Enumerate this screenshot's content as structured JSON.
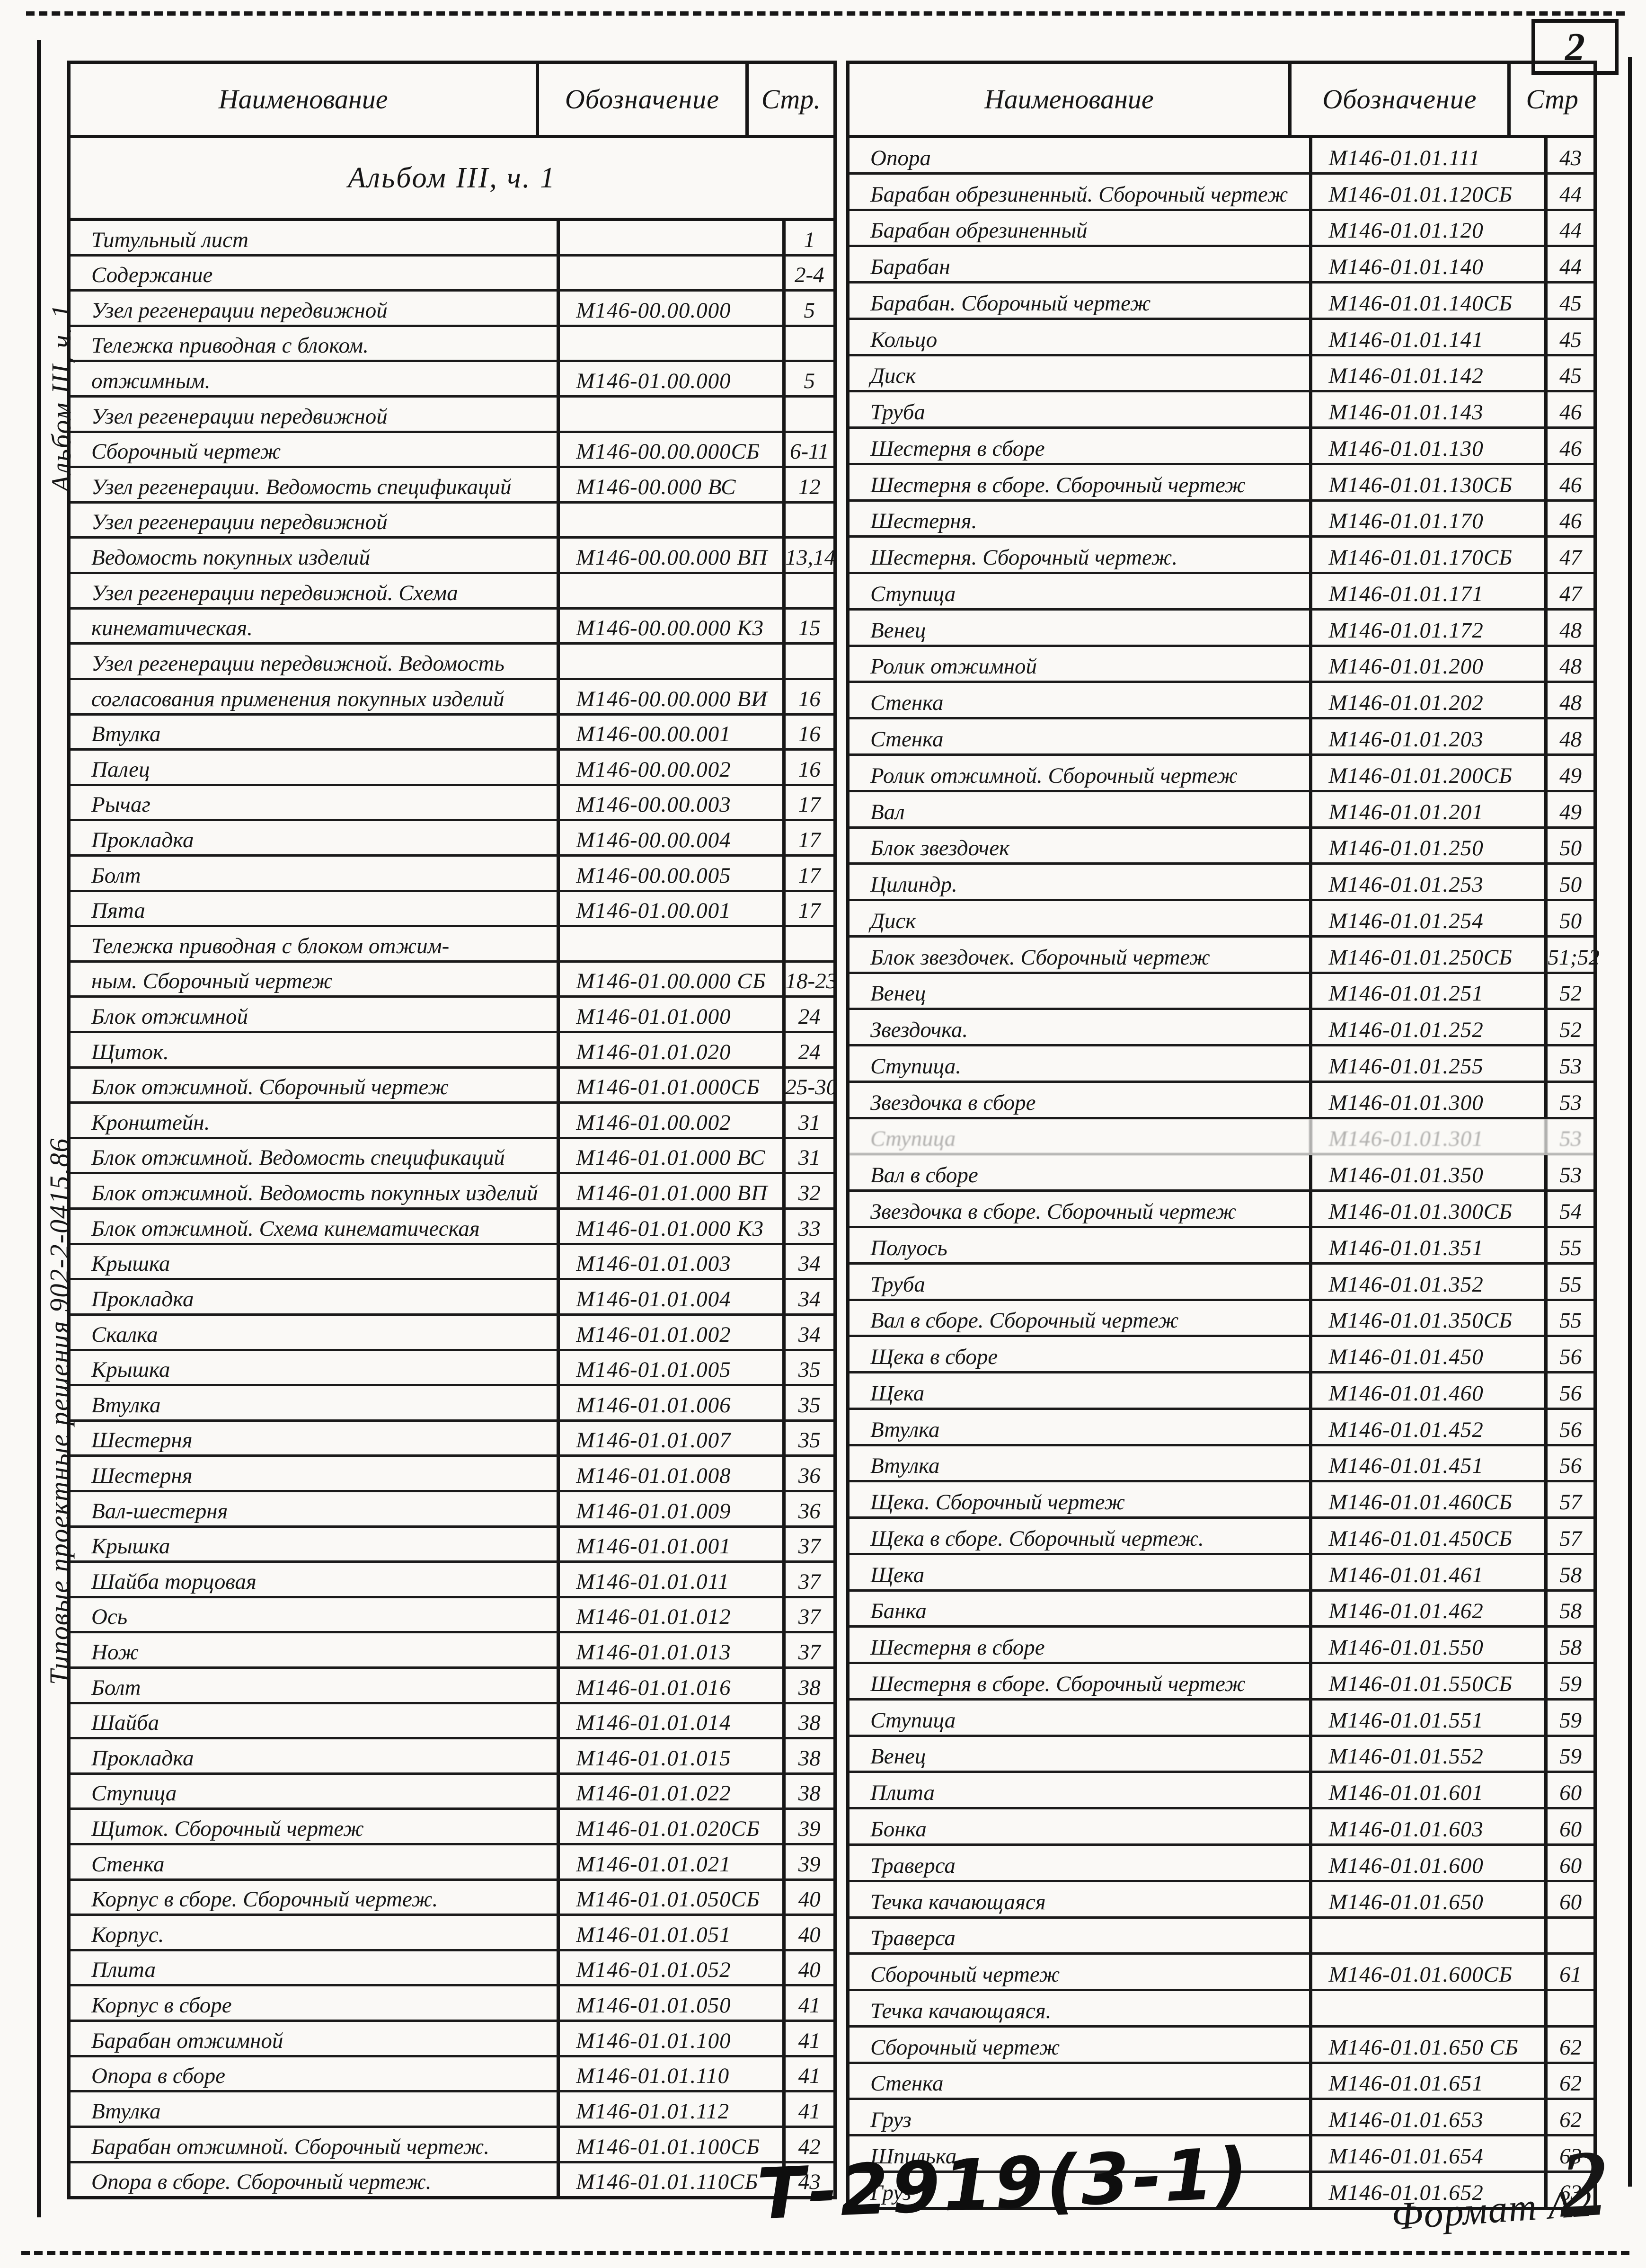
{
  "page": {
    "corner_number": "2",
    "footer_stamp": "Т-2919(3-1)",
    "footer_format": "Формат А2",
    "footer_page_number": "2"
  },
  "margin": {
    "album_label": "Альбом III, ч. 1",
    "series_label": "Типовые проектные решения   902-2-0415.86"
  },
  "left_table": {
    "headers": [
      "Наименование",
      "Обозначение",
      "Стр."
    ],
    "section_title": "Альбом III, ч. 1",
    "rows": [
      {
        "name": "Титульный лист",
        "code": "",
        "page": "1"
      },
      {
        "name": "Содержание",
        "code": "",
        "page": "2-4"
      },
      {
        "name": "Узел регенерации передвижной",
        "code": "М146-00.00.000",
        "page": "5"
      },
      {
        "name": "Тележка приводная с блоком.",
        "code": "",
        "page": ""
      },
      {
        "name": "отжимным.",
        "code": "М146-01.00.000",
        "page": "5"
      },
      {
        "name": "Узел регенерации передвижной",
        "code": "",
        "page": ""
      },
      {
        "name": "Сборочный чертеж",
        "code": "М146-00.00.000СБ",
        "page": "6-11"
      },
      {
        "name": "Узел регенерации. Ведомость спецификаций",
        "code": "М146-00.000 ВС",
        "page": "12"
      },
      {
        "name": "Узел регенерации передвижной",
        "code": "",
        "page": ""
      },
      {
        "name": "Ведомость покупных изделий",
        "code": "М146-00.00.000 ВП",
        "page": "13,14"
      },
      {
        "name": "Узел регенерации передвижной. Схема",
        "code": "",
        "page": ""
      },
      {
        "name": "кинематическая.",
        "code": "М146-00.00.000 К3",
        "page": "15"
      },
      {
        "name": "Узел регенерации передвижной. Ведомость",
        "code": "",
        "page": ""
      },
      {
        "name": "согласования применения покупных изделий",
        "code": "М146-00.00.000 ВИ",
        "page": "16"
      },
      {
        "name": "Втулка",
        "code": "М146-00.00.001",
        "page": "16"
      },
      {
        "name": "Палец",
        "code": "М146-00.00.002",
        "page": "16"
      },
      {
        "name": "Рычаг",
        "code": "М146-00.00.003",
        "page": "17"
      },
      {
        "name": "Прокладка",
        "code": "М146-00.00.004",
        "page": "17"
      },
      {
        "name": "Болт",
        "code": "М146-00.00.005",
        "page": "17"
      },
      {
        "name": "Пята",
        "code": "М146-01.00.001",
        "page": "17"
      },
      {
        "name": "Тележка приводная с блоком отжим-",
        "code": "",
        "page": ""
      },
      {
        "name": "ным. Сборочный чертеж",
        "code": "М146-01.00.000 СБ",
        "page": "18-23"
      },
      {
        "name": "Блок отжимной",
        "code": "М146-01.01.000",
        "page": "24"
      },
      {
        "name": "Щиток.",
        "code": "М146-01.01.020",
        "page": "24"
      },
      {
        "name": "Блок отжимной. Сборочный чертеж",
        "code": "М146-01.01.000СБ",
        "page": "25-30"
      },
      {
        "name": "Кронштейн.",
        "code": "М146-01.00.002",
        "page": "31"
      },
      {
        "name": "Блок отжимной. Ведомость спецификаций",
        "code": "М146-01.01.000 ВС",
        "page": "31"
      },
      {
        "name": "Блок отжимной. Ведомость покупных изделий",
        "code": "М146-01.01.000 ВП",
        "page": "32"
      },
      {
        "name": "Блок отжимной. Схема кинематическая",
        "code": "М146-01.01.000 К3",
        "page": "33"
      },
      {
        "name": "Крышка",
        "code": "М146-01.01.003",
        "page": "34"
      },
      {
        "name": "Прокладка",
        "code": "М146-01.01.004",
        "page": "34"
      },
      {
        "name": "Скалка",
        "code": "М146-01.01.002",
        "page": "34"
      },
      {
        "name": "Крышка",
        "code": "М146-01.01.005",
        "page": "35"
      },
      {
        "name": "Втулка",
        "code": "М146-01.01.006",
        "page": "35"
      },
      {
        "name": "Шестерня",
        "code": "М146-01.01.007",
        "page": "35"
      },
      {
        "name": "Шестерня",
        "code": "М146-01.01.008",
        "page": "36"
      },
      {
        "name": "Вал-шестерня",
        "code": "М146-01.01.009",
        "page": "36"
      },
      {
        "name": "Крышка",
        "code": "М146-01.01.001",
        "page": "37"
      },
      {
        "name": "Шайба торцовая",
        "code": "М146-01.01.011",
        "page": "37"
      },
      {
        "name": "Ось",
        "code": "М146-01.01.012",
        "page": "37"
      },
      {
        "name": "Нож",
        "code": "М146-01.01.013",
        "page": "37"
      },
      {
        "name": "Болт",
        "code": "М146-01.01.016",
        "page": "38"
      },
      {
        "name": "Шайба",
        "code": "М146-01.01.014",
        "page": "38"
      },
      {
        "name": "Прокладка",
        "code": "М146-01.01.015",
        "page": "38"
      },
      {
        "name": "Ступица",
        "code": "М146-01.01.022",
        "page": "38"
      },
      {
        "name": "Щиток. Сборочный чертеж",
        "code": "М146-01.01.020СБ",
        "page": "39"
      },
      {
        "name": "Стенка",
        "code": "М146-01.01.021",
        "page": "39"
      },
      {
        "name": "Корпус в сборе. Сборочный чертеж.",
        "code": "М146-01.01.050СБ",
        "page": "40"
      },
      {
        "name": "Корпус.",
        "code": "М146-01.01.051",
        "page": "40"
      },
      {
        "name": "Плита",
        "code": "М146-01.01.052",
        "page": "40"
      },
      {
        "name": "Корпус в сборе",
        "code": "М146-01.01.050",
        "page": "41"
      },
      {
        "name": "Барабан отжимной",
        "code": "М146-01.01.100",
        "page": "41"
      },
      {
        "name": "Опора в сборе",
        "code": "М146-01.01.110",
        "page": "41"
      },
      {
        "name": "Втулка",
        "code": "М146-01.01.112",
        "page": "41"
      },
      {
        "name": "Барабан отжимной. Сборочный чертеж.",
        "code": "М146-01.01.100СБ",
        "page": "42"
      },
      {
        "name": "Опора в сборе. Сборочный чертеж.",
        "code": "М146-01.01.110СБ",
        "page": "43"
      }
    ]
  },
  "right_table": {
    "headers": [
      "Наименование",
      "Обозначение",
      "Стр"
    ],
    "rows": [
      {
        "name": "Опора",
        "code": "М146-01.01.111",
        "page": "43"
      },
      {
        "name": "Барабан обрезиненный. Сборочный чертеж",
        "code": "М146-01.01.120СБ",
        "page": "44"
      },
      {
        "name": "Барабан обрезиненный",
        "code": "М146-01.01.120",
        "page": "44"
      },
      {
        "name": "Барабан",
        "code": "М146-01.01.140",
        "page": "44"
      },
      {
        "name": "Барабан. Сборочный чертеж",
        "code": "М146-01.01.140СБ",
        "page": "45"
      },
      {
        "name": "Кольцо",
        "code": "М146-01.01.141",
        "page": "45"
      },
      {
        "name": "Диск",
        "code": "М146-01.01.142",
        "page": "45"
      },
      {
        "name": "Труба",
        "code": "М146-01.01.143",
        "page": "46"
      },
      {
        "name": "Шестерня в сборе",
        "code": "М146-01.01.130",
        "page": "46"
      },
      {
        "name": "Шестерня в сборе. Сборочный чертеж",
        "code": "М146-01.01.130СБ",
        "page": "46"
      },
      {
        "name": "Шестерня.",
        "code": "М146-01.01.170",
        "page": "46"
      },
      {
        "name": "Шестерня. Сборочный чертеж.",
        "code": "М146-01.01.170СБ",
        "page": "47"
      },
      {
        "name": "Ступица",
        "code": "М146-01.01.171",
        "page": "47"
      },
      {
        "name": "Венец",
        "code": "М146-01.01.172",
        "page": "48"
      },
      {
        "name": "Ролик отжимной",
        "code": "М146-01.01.200",
        "page": "48"
      },
      {
        "name": "Стенка",
        "code": "М146-01.01.202",
        "page": "48"
      },
      {
        "name": "Стенка",
        "code": "М146-01.01.203",
        "page": "48"
      },
      {
        "name": "Ролик отжимной. Сборочный чертеж",
        "code": "М146-01.01.200СБ",
        "page": "49"
      },
      {
        "name": "Вал",
        "code": "М146-01.01.201",
        "page": "49"
      },
      {
        "name": "Блок звездочек",
        "code": "М146-01.01.250",
        "page": "50"
      },
      {
        "name": "Цилиндр.",
        "code": "М146-01.01.253",
        "page": "50"
      },
      {
        "name": "Диск",
        "code": "М146-01.01.254",
        "page": "50"
      },
      {
        "name": "Блок звездочек. Сборочный чертеж",
        "code": "М146-01.01.250СБ",
        "page": "51;52"
      },
      {
        "name": "Венец",
        "code": "М146-01.01.251",
        "page": "52"
      },
      {
        "name": "Звездочка.",
        "code": "М146-01.01.252",
        "page": "52"
      },
      {
        "name": "Ступица.",
        "code": "М146-01.01.255",
        "page": "53"
      },
      {
        "name": "Звездочка в сборе",
        "code": "М146-01.01.300",
        "page": "53"
      },
      {
        "name": "Ступица",
        "code": "М146-01.01.301",
        "page": "53",
        "faded": true
      },
      {
        "name": "Вал в сборе",
        "code": "М146-01.01.350",
        "page": "53"
      },
      {
        "name": "Звездочка в сборе. Сборочный чертеж",
        "code": "М146-01.01.300СБ",
        "page": "54"
      },
      {
        "name": "Полуось",
        "code": "М146-01.01.351",
        "page": "55"
      },
      {
        "name": "Труба",
        "code": "М146-01.01.352",
        "page": "55"
      },
      {
        "name": "Вал в сборе. Сборочный чертеж",
        "code": "М146-01.01.350СБ",
        "page": "55"
      },
      {
        "name": "Щека в сборе",
        "code": "М146-01.01.450",
        "page": "56"
      },
      {
        "name": "Щека",
        "code": "М146-01.01.460",
        "page": "56"
      },
      {
        "name": "Втулка",
        "code": "М146-01.01.452",
        "page": "56"
      },
      {
        "name": "Втулка",
        "code": "М146-01.01.451",
        "page": "56"
      },
      {
        "name": "Щека. Сборочный чертеж",
        "code": "М146-01.01.460СБ",
        "page": "57"
      },
      {
        "name": "Щека в сборе. Сборочный чертеж.",
        "code": "М146-01.01.450СБ",
        "page": "57"
      },
      {
        "name": "Щека",
        "code": "М146-01.01.461",
        "page": "58"
      },
      {
        "name": "Банка",
        "code": "М146-01.01.462",
        "page": "58"
      },
      {
        "name": "Шестерня в сборе",
        "code": "М146-01.01.550",
        "page": "58"
      },
      {
        "name": "Шестерня в сборе. Сборочный чертеж",
        "code": "М146-01.01.550СБ",
        "page": "59"
      },
      {
        "name": "Ступица",
        "code": "М146-01.01.551",
        "page": "59"
      },
      {
        "name": "Венец",
        "code": "М146-01.01.552",
        "page": "59"
      },
      {
        "name": "Плита",
        "code": "М146-01.01.601",
        "page": "60"
      },
      {
        "name": "Бонка",
        "code": "М146-01.01.603",
        "page": "60"
      },
      {
        "name": "Траверса",
        "code": "М146-01.01.600",
        "page": "60"
      },
      {
        "name": "Течка качающаяся",
        "code": "М146-01.01.650",
        "page": "60"
      },
      {
        "name": "Траверса",
        "code": "",
        "page": ""
      },
      {
        "name": "Сборочный чертеж",
        "code": "М146-01.01.600СБ",
        "page": "61"
      },
      {
        "name": "Течка качающаяся.",
        "code": "",
        "page": ""
      },
      {
        "name": "Сборочный чертеж",
        "code": "М146-01.01.650 СБ",
        "page": "62"
      },
      {
        "name": "Стенка",
        "code": "М146-01.01.651",
        "page": "62"
      },
      {
        "name": "Груз",
        "code": "М146-01.01.653",
        "page": "62"
      },
      {
        "name": "Шпилька",
        "code": "М146-01.01.654",
        "page": "63"
      },
      {
        "name": "Груз",
        "code": "М146-01.01.652",
        "page": "63"
      }
    ]
  }
}
